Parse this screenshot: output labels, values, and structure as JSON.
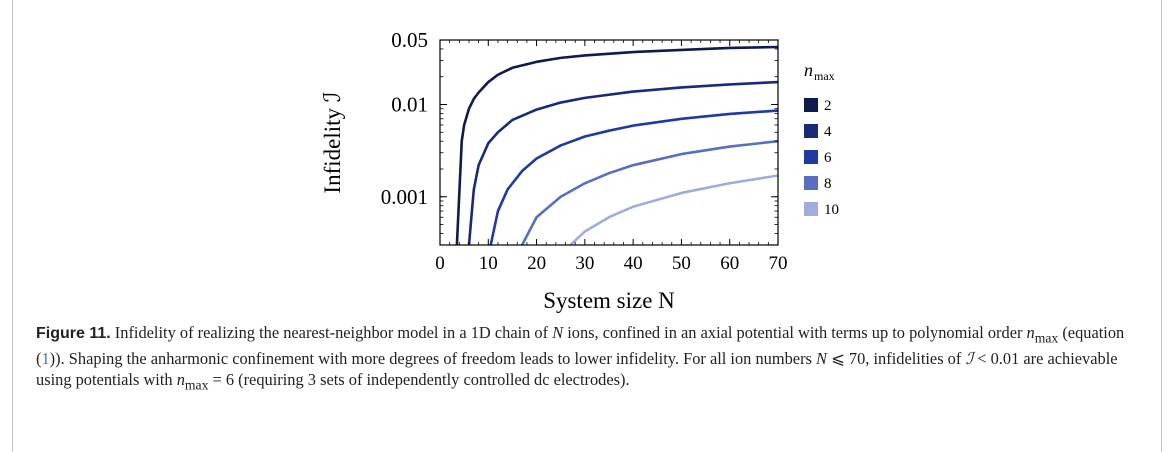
{
  "chart_data": {
    "type": "line",
    "xlabel": "System size N",
    "ylabel": "Infidelity ℐ",
    "xlim": [
      0,
      70
    ],
    "ylim": [
      0.0003,
      0.05
    ],
    "yscale": "log",
    "x_ticks": [
      "0",
      "10",
      "20",
      "30",
      "40",
      "50",
      "60",
      "70"
    ],
    "y_ticks": [
      "0.001",
      "0.01",
      "0.05"
    ],
    "legend": {
      "title": "n_max",
      "placement": "right",
      "labels": [
        "2",
        "4",
        "6",
        "8",
        "10"
      ]
    },
    "series": [
      {
        "name": "2",
        "color": "#101a4d",
        "points": [
          [
            3.5,
            0.0003
          ],
          [
            4.5,
            0.004
          ],
          [
            5,
            0.006
          ],
          [
            6,
            0.009
          ],
          [
            7,
            0.0115
          ],
          [
            8,
            0.0135
          ],
          [
            10,
            0.0175
          ],
          [
            12,
            0.021
          ],
          [
            15,
            0.025
          ],
          [
            20,
            0.029
          ],
          [
            25,
            0.032
          ],
          [
            30,
            0.034
          ],
          [
            40,
            0.037
          ],
          [
            50,
            0.039
          ],
          [
            60,
            0.041
          ],
          [
            70,
            0.042
          ]
        ]
      },
      {
        "name": "4",
        "color": "#1a2a7a",
        "points": [
          [
            6,
            0.0003
          ],
          [
            7,
            0.0012
          ],
          [
            8,
            0.0022
          ],
          [
            10,
            0.0038
          ],
          [
            12,
            0.005
          ],
          [
            15,
            0.0068
          ],
          [
            20,
            0.0088
          ],
          [
            25,
            0.0105
          ],
          [
            30,
            0.0118
          ],
          [
            40,
            0.0138
          ],
          [
            50,
            0.0153
          ],
          [
            60,
            0.0165
          ],
          [
            70,
            0.0175
          ]
        ]
      },
      {
        "name": "6",
        "color": "#1f3aa0",
        "points": [
          [
            10.5,
            0.0003
          ],
          [
            12,
            0.0007
          ],
          [
            14,
            0.0012
          ],
          [
            17,
            0.0019
          ],
          [
            20,
            0.0026
          ],
          [
            25,
            0.0036
          ],
          [
            30,
            0.0045
          ],
          [
            35,
            0.0052
          ],
          [
            40,
            0.0059
          ],
          [
            50,
            0.007
          ],
          [
            60,
            0.0079
          ],
          [
            70,
            0.0086
          ]
        ]
      },
      {
        "name": "8",
        "color": "#5a6ec0",
        "points": [
          [
            17,
            0.0003
          ],
          [
            20,
            0.0006
          ],
          [
            25,
            0.001
          ],
          [
            30,
            0.0014
          ],
          [
            35,
            0.0018
          ],
          [
            40,
            0.0022
          ],
          [
            50,
            0.0029
          ],
          [
            60,
            0.0035
          ],
          [
            70,
            0.004
          ]
        ]
      },
      {
        "name": "10",
        "color": "#a0acdc",
        "points": [
          [
            27,
            0.0003
          ],
          [
            30,
            0.00042
          ],
          [
            35,
            0.0006
          ],
          [
            40,
            0.00078
          ],
          [
            50,
            0.0011
          ],
          [
            60,
            0.0014
          ],
          [
            70,
            0.0017
          ]
        ]
      }
    ]
  },
  "caption": {
    "label": "Figure 11.",
    "text_1": " Infidelity of realizing the nearest-neighbor model in a 1D chain of ",
    "N1": "N",
    "text_2": " ions, confined in an axial potential with terms up to polynomial order ",
    "nmax1": "n",
    "nmax1_sub": "max",
    "text_3": " (equation (",
    "eq_ref": "1",
    "text_4": ")). Shaping the anharmonic confinement with more degrees of freedom leads to lower infidelity. For all ion numbers ",
    "N2": "N",
    "text_5": " ⩽ 70, infidelities of ",
    "I1": "ℐ",
    "text_6": " < 0.01 are achievable using potentials with ",
    "nmax2": "n",
    "nmax2_sub": "max",
    "text_7": " = 6 (requiring 3 sets of independently controlled dc electrodes)."
  }
}
